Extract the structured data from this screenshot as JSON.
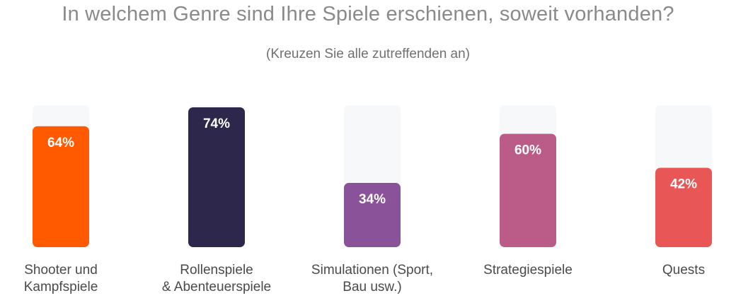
{
  "chart_data": {
    "type": "bar",
    "title": "In welchem Genre sind Ihre Spiele erschienen, soweit vorhanden?",
    "subtitle": "(Kreuzen Sie alle zutreffenden an)",
    "categories": [
      "Shooter und\nKampfspiele",
      "Rollenspiele\n& Abenteuerspiele",
      "Simulationen (Sport,\nBau usw.)",
      "Strategiespiele",
      "Quests"
    ],
    "values": [
      64,
      74,
      34,
      60,
      42
    ],
    "value_labels": [
      "64%",
      "74%",
      "34%",
      "60%",
      "42%"
    ],
    "colors": [
      "#ff5a00",
      "#2d274b",
      "#8a5298",
      "#bb5b87",
      "#e85656"
    ],
    "track_color": "#f7f8fa",
    "ylim": [
      0,
      100
    ],
    "grid": false,
    "legend": "none"
  }
}
